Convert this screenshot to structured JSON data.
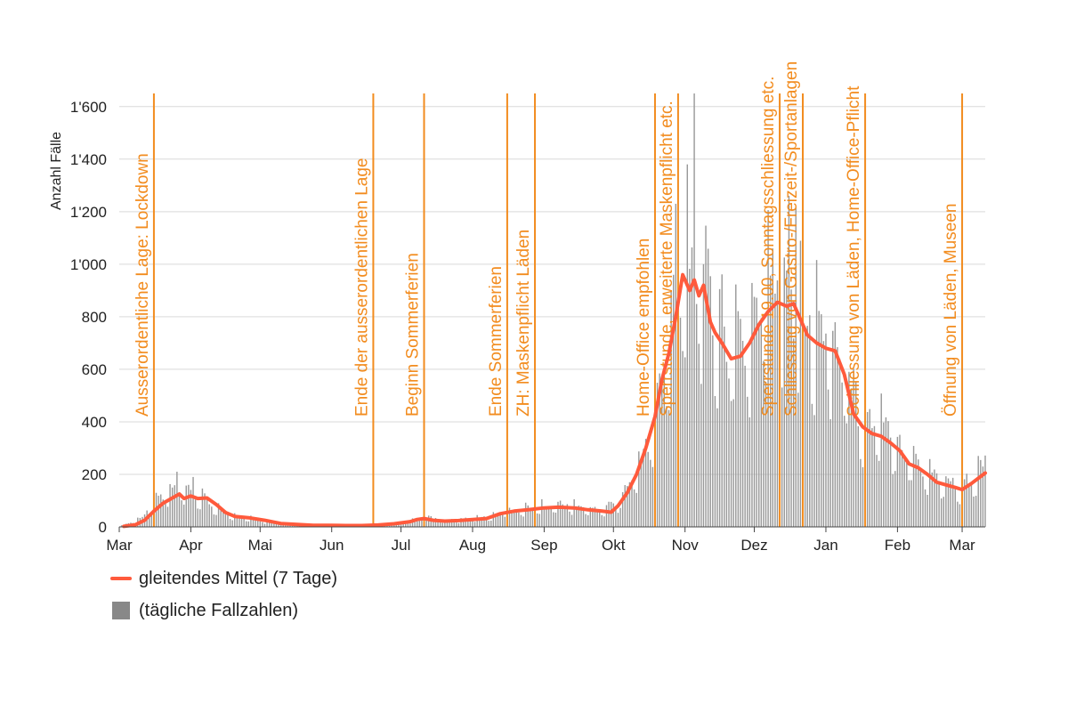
{
  "chart_data": {
    "type": "bar+line",
    "ylabel": "Anzahl Fälle",
    "ylim": [
      0,
      1650
    ],
    "yticks": [
      {
        "value": 0,
        "label": "0"
      },
      {
        "value": 200,
        "label": "200"
      },
      {
        "value": 400,
        "label": "400"
      },
      {
        "value": 600,
        "label": "600"
      },
      {
        "value": 800,
        "label": "800"
      },
      {
        "value": 1000,
        "label": "1'000"
      },
      {
        "value": 1200,
        "label": "1'200"
      },
      {
        "value": 1400,
        "label": "1'400"
      },
      {
        "value": 1600,
        "label": "1'600"
      }
    ],
    "xrange": [
      "2020-03-01",
      "2021-03-11"
    ],
    "xticks": [
      {
        "date": "2020-03-01",
        "label": "Mar"
      },
      {
        "date": "2020-04-01",
        "label": "Apr"
      },
      {
        "date": "2020-05-01",
        "label": "Mai"
      },
      {
        "date": "2020-06-01",
        "label": "Jun"
      },
      {
        "date": "2020-07-01",
        "label": "Jul"
      },
      {
        "date": "2020-08-01",
        "label": "Aug"
      },
      {
        "date": "2020-09-01",
        "label": "Sep"
      },
      {
        "date": "2020-10-01",
        "label": "Okt"
      },
      {
        "date": "2020-11-01",
        "label": "Nov"
      },
      {
        "date": "2020-12-01",
        "label": "Dez"
      },
      {
        "date": "2021-01-01",
        "label": "Jan"
      },
      {
        "date": "2021-02-01",
        "label": "Feb"
      },
      {
        "date": "2021-03-01",
        "label": "Mar"
      }
    ],
    "grid": true,
    "series": [
      {
        "name": "gleitendes Mittel (7 Tage)",
        "kind": "line",
        "color": "#ff5a3c",
        "points": [
          [
            "2020-03-03",
            2
          ],
          [
            "2020-03-08",
            8
          ],
          [
            "2020-03-12",
            25
          ],
          [
            "2020-03-16",
            60
          ],
          [
            "2020-03-20",
            90
          ],
          [
            "2020-03-24",
            110
          ],
          [
            "2020-03-27",
            125
          ],
          [
            "2020-03-29",
            108
          ],
          [
            "2020-04-01",
            118
          ],
          [
            "2020-04-04",
            108
          ],
          [
            "2020-04-08",
            110
          ],
          [
            "2020-04-12",
            85
          ],
          [
            "2020-04-16",
            55
          ],
          [
            "2020-04-20",
            40
          ],
          [
            "2020-04-26",
            35
          ],
          [
            "2020-05-03",
            25
          ],
          [
            "2020-05-10",
            13
          ],
          [
            "2020-05-17",
            9
          ],
          [
            "2020-05-24",
            6
          ],
          [
            "2020-05-31",
            6
          ],
          [
            "2020-06-07",
            5
          ],
          [
            "2020-06-14",
            5
          ],
          [
            "2020-06-21",
            7
          ],
          [
            "2020-06-28",
            12
          ],
          [
            "2020-07-05",
            20
          ],
          [
            "2020-07-08",
            28
          ],
          [
            "2020-07-11",
            32
          ],
          [
            "2020-07-15",
            25
          ],
          [
            "2020-07-20",
            22
          ],
          [
            "2020-07-26",
            24
          ],
          [
            "2020-08-01",
            28
          ],
          [
            "2020-08-07",
            32
          ],
          [
            "2020-08-13",
            50
          ],
          [
            "2020-08-19",
            60
          ],
          [
            "2020-08-25",
            65
          ],
          [
            "2020-09-01",
            72
          ],
          [
            "2020-09-07",
            75
          ],
          [
            "2020-09-14",
            72
          ],
          [
            "2020-09-20",
            65
          ],
          [
            "2020-09-26",
            60
          ],
          [
            "2020-09-30",
            56
          ],
          [
            "2020-10-03",
            80
          ],
          [
            "2020-10-07",
            130
          ],
          [
            "2020-10-11",
            200
          ],
          [
            "2020-10-15",
            300
          ],
          [
            "2020-10-19",
            420
          ],
          [
            "2020-10-22",
            560
          ],
          [
            "2020-10-25",
            660
          ],
          [
            "2020-10-28",
            800
          ],
          [
            "2020-10-31",
            960
          ],
          [
            "2020-11-03",
            900
          ],
          [
            "2020-11-05",
            940
          ],
          [
            "2020-11-07",
            880
          ],
          [
            "2020-11-09",
            920
          ],
          [
            "2020-11-12",
            780
          ],
          [
            "2020-11-14",
            740
          ],
          [
            "2020-11-17",
            700
          ],
          [
            "2020-11-21",
            640
          ],
          [
            "2020-11-25",
            650
          ],
          [
            "2020-11-29",
            700
          ],
          [
            "2020-12-03",
            770
          ],
          [
            "2020-12-07",
            820
          ],
          [
            "2020-12-11",
            855
          ],
          [
            "2020-12-15",
            840
          ],
          [
            "2020-12-18",
            850
          ],
          [
            "2020-12-21",
            790
          ],
          [
            "2020-12-24",
            730
          ],
          [
            "2020-12-28",
            700
          ],
          [
            "2021-01-01",
            680
          ],
          [
            "2021-01-05",
            670
          ],
          [
            "2021-01-09",
            580
          ],
          [
            "2021-01-13",
            430
          ],
          [
            "2021-01-17",
            380
          ],
          [
            "2021-01-21",
            355
          ],
          [
            "2021-01-25",
            345
          ],
          [
            "2021-01-29",
            320
          ],
          [
            "2021-02-02",
            290
          ],
          [
            "2021-02-06",
            240
          ],
          [
            "2021-02-10",
            225
          ],
          [
            "2021-02-14",
            200
          ],
          [
            "2021-02-18",
            170
          ],
          [
            "2021-02-22",
            160
          ],
          [
            "2021-02-26",
            150
          ],
          [
            "2021-03-01",
            142
          ],
          [
            "2021-03-05",
            165
          ],
          [
            "2021-03-08",
            185
          ],
          [
            "2021-03-11",
            205
          ]
        ]
      },
      {
        "name": "(tägliche Fallzahlen)",
        "kind": "bar",
        "color": "#999999",
        "anchors": [
          [
            "2020-03-01",
            1
          ],
          [
            "2020-03-10",
            30
          ],
          [
            "2020-03-18",
            110
          ],
          [
            "2020-03-25",
            130
          ],
          [
            "2020-04-01",
            120
          ],
          [
            "2020-04-08",
            95
          ],
          [
            "2020-04-15",
            55
          ],
          [
            "2020-04-22",
            40
          ],
          [
            "2020-05-01",
            25
          ],
          [
            "2020-05-10",
            14
          ],
          [
            "2020-05-20",
            8
          ],
          [
            "2020-06-01",
            6
          ],
          [
            "2020-06-15",
            6
          ],
          [
            "2020-06-25",
            10
          ],
          [
            "2020-07-05",
            22
          ],
          [
            "2020-07-12",
            35
          ],
          [
            "2020-07-20",
            24
          ],
          [
            "2020-08-01",
            30
          ],
          [
            "2020-08-10",
            40
          ],
          [
            "2020-08-20",
            62
          ],
          [
            "2020-09-01",
            78
          ],
          [
            "2020-09-12",
            80
          ],
          [
            "2020-09-25",
            62
          ],
          [
            "2020-10-03",
            90
          ],
          [
            "2020-10-10",
            190
          ],
          [
            "2020-10-17",
            330
          ],
          [
            "2020-10-24",
            640
          ],
          [
            "2020-10-31",
            1000
          ],
          [
            "2020-11-06",
            970
          ],
          [
            "2020-11-12",
            820
          ],
          [
            "2020-11-20",
            680
          ],
          [
            "2020-11-28",
            700
          ],
          [
            "2020-12-06",
            860
          ],
          [
            "2020-12-13",
            900
          ],
          [
            "2020-12-20",
            840
          ],
          [
            "2020-12-27",
            730
          ],
          [
            "2021-01-03",
            710
          ],
          [
            "2021-01-10",
            560
          ],
          [
            "2021-01-17",
            400
          ],
          [
            "2021-01-24",
            370
          ],
          [
            "2021-02-01",
            320
          ],
          [
            "2021-02-10",
            230
          ],
          [
            "2021-02-20",
            175
          ],
          [
            "2021-03-01",
            150
          ],
          [
            "2021-03-11",
            230
          ]
        ],
        "peaks": [
          [
            "2020-03-26",
            210
          ],
          [
            "2020-04-02",
            190
          ],
          [
            "2020-10-28",
            1230
          ],
          [
            "2020-11-02",
            1380
          ],
          [
            "2020-11-05",
            1650
          ],
          [
            "2020-11-09",
            1000
          ],
          [
            "2020-12-09",
            1060
          ],
          [
            "2020-12-16",
            1260
          ],
          [
            "2020-12-19",
            1220
          ],
          [
            "2021-03-08",
            270
          ]
        ]
      }
    ],
    "events": [
      {
        "date": "2020-03-16",
        "label": "Ausserordentliche Lage: Lockdown"
      },
      {
        "date": "2020-06-19",
        "label": "Ende der ausserordentlichen Lage"
      },
      {
        "date": "2020-07-11",
        "label": "Beginn Sommerferien"
      },
      {
        "date": "2020-08-16",
        "label": "Ende Sommerferien"
      },
      {
        "date": "2020-08-28",
        "label": "ZH: Maskenpflicht Läden"
      },
      {
        "date": "2020-10-19",
        "label": "Home-Office empfohlen"
      },
      {
        "date": "2020-10-29",
        "label": "Sperrstunde, erweiterte Maskenpflicht etc."
      },
      {
        "date": "2020-12-12",
        "label": "Sperrstunde 19.00, Sonntagsschliessung etc."
      },
      {
        "date": "2020-12-22",
        "label": "Schliessung von Gastro-/Freizeit-/Sportanlagen"
      },
      {
        "date": "2021-01-18",
        "label": "Schliessung von Läden, Home-Office-Pflicht"
      },
      {
        "date": "2021-03-01",
        "label": "Öffnung von Läden, Museen"
      }
    ],
    "legend_position": "bottom-left"
  },
  "legend": {
    "line_label": "gleitendes Mittel (7 Tage)",
    "bar_label": "(tägliche Fallzahlen)"
  },
  "colors": {
    "line": "#ff5a3c",
    "bars": "#999999",
    "events": "#f28c1f",
    "grid": "#d9d9d9"
  }
}
